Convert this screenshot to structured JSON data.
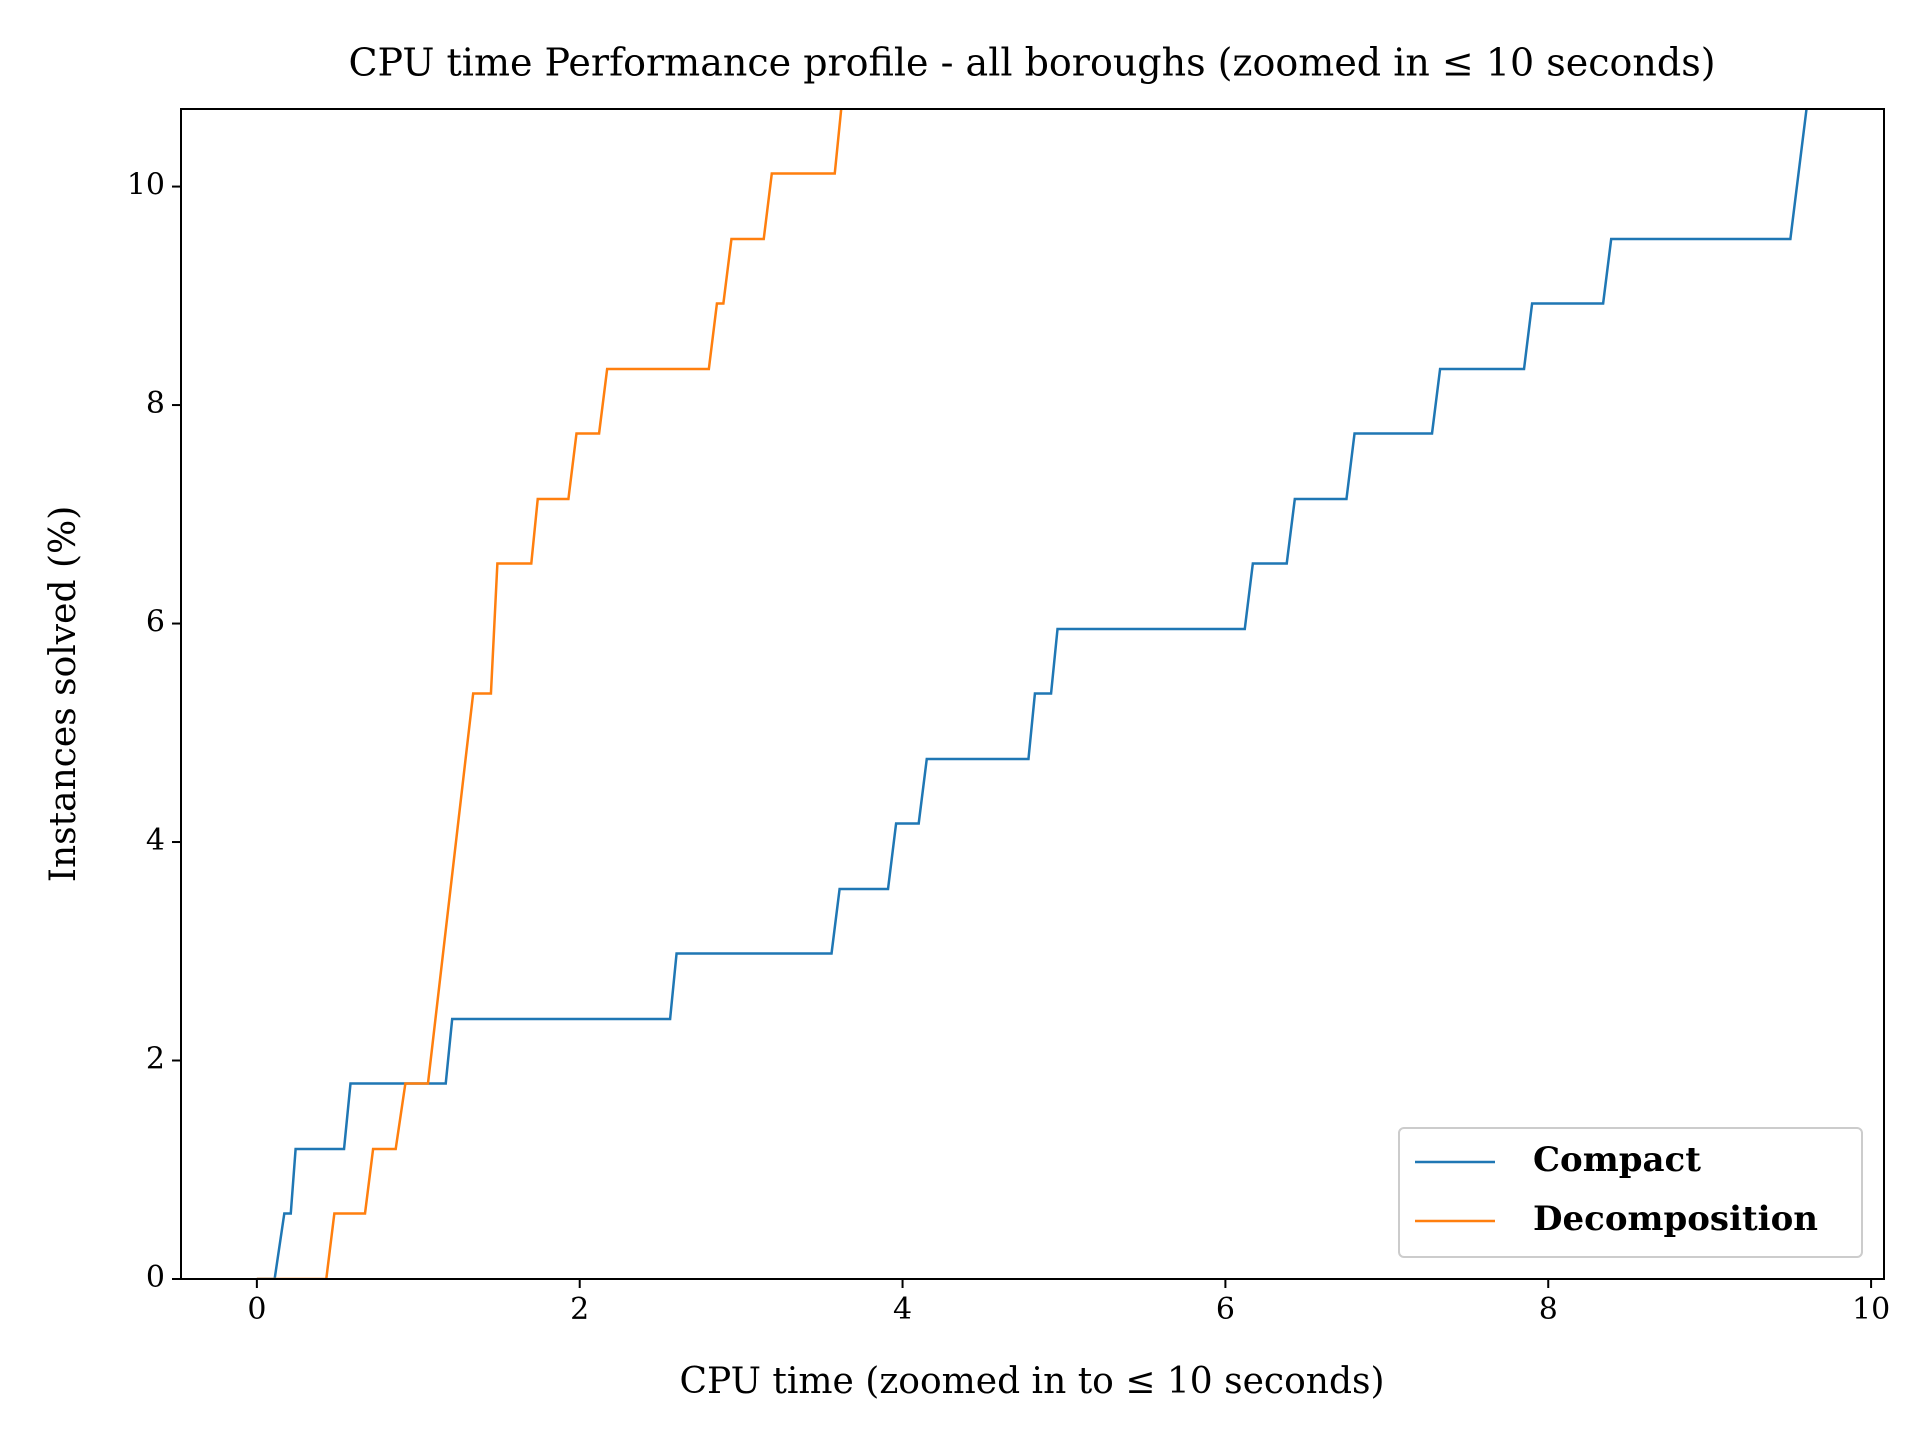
{
  "chart_data": {
    "type": "line",
    "title": "CPU time Performance profile - all boroughs (zoomed in ≤ 10 seconds)",
    "x_label": "CPU time (zoomed in to ≤ 10 seconds)",
    "y_label": "Instances solved (%)",
    "xlim": [
      -0.47,
      10.08
    ],
    "ylim": [
      0,
      10.71
    ],
    "xticks": [
      0,
      2,
      4,
      6,
      8,
      10
    ],
    "yticks": [
      0,
      2,
      4,
      6,
      8,
      10
    ],
    "legend": "lower right",
    "series": [
      {
        "name": "Compact",
        "color": "#1f77b4",
        "x": [
          0,
          0.11,
          0.17,
          0.21,
          0.24,
          0.54,
          0.58,
          1.17,
          1.21,
          2.56,
          2.6,
          3.56,
          3.61,
          3.91,
          3.96,
          4.1,
          4.15,
          4.78,
          4.82,
          4.92,
          4.96,
          6.12,
          6.17,
          6.38,
          6.43,
          6.75,
          6.8,
          7.28,
          7.33,
          7.85,
          7.9,
          8.34,
          8.39,
          9.5,
          9.6
        ],
        "values": [
          0,
          0,
          0.6,
          0.6,
          1.19,
          1.19,
          1.79,
          1.79,
          2.38,
          2.38,
          2.98,
          2.98,
          3.57,
          3.57,
          4.17,
          4.17,
          4.76,
          4.76,
          5.36,
          5.36,
          5.95,
          5.95,
          6.55,
          6.55,
          7.14,
          7.14,
          7.74,
          7.74,
          8.33,
          8.33,
          8.93,
          8.93,
          9.52,
          9.52,
          10.71
        ]
      },
      {
        "name": "Decomposition",
        "color": "#ff7f0e",
        "x": [
          0,
          0.43,
          0.48,
          0.67,
          0.72,
          0.86,
          0.92,
          1.06,
          1.34,
          1.45,
          1.49,
          1.7,
          1.74,
          1.93,
          1.98,
          2.12,
          2.17,
          2.8,
          2.85,
          2.89,
          2.94,
          3.14,
          3.19,
          3.58,
          3.62
        ],
        "values": [
          0,
          0,
          0.6,
          0.6,
          1.19,
          1.19,
          1.79,
          1.79,
          5.36,
          5.36,
          6.55,
          6.55,
          7.14,
          7.14,
          7.74,
          7.74,
          8.33,
          8.33,
          8.93,
          8.93,
          9.52,
          9.52,
          10.12,
          10.12,
          10.71
        ]
      }
    ]
  }
}
